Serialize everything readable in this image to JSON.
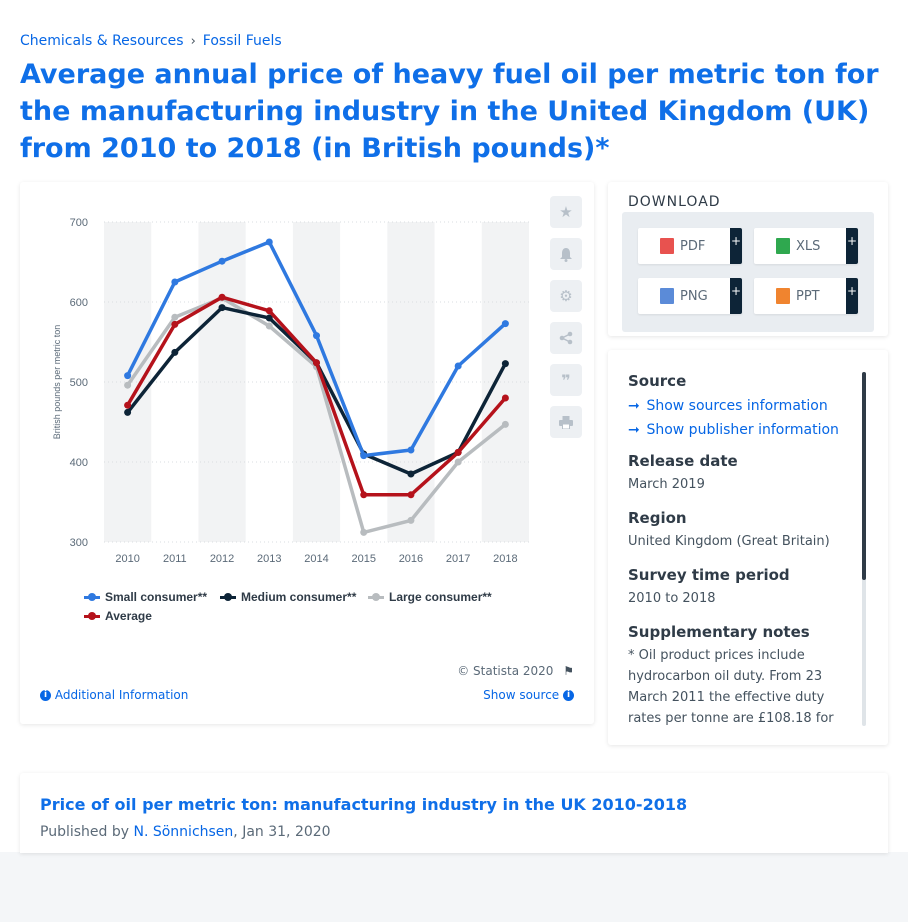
{
  "breadcrumb": {
    "item1": "Chemicals & Resources",
    "separator": "›",
    "item2": "Fossil Fuels"
  },
  "page_title": "Average annual price of heavy fuel oil per metric ton for the manufacturing industry in the United Kingdom (UK) from 2010 to 2018 (in British pounds)*",
  "chart_footer": {
    "credit": "© Statista 2020",
    "additional_info": "Additional Information",
    "show_source": "Show source"
  },
  "tools": [
    "star-icon",
    "bell-icon",
    "gear-icon",
    "share-icon",
    "quote-icon",
    "print-icon"
  ],
  "download": {
    "title": "DOWNLOAD",
    "buttons": [
      {
        "label": "PDF",
        "icon": "pdf-file-icon",
        "color": "#e8524f"
      },
      {
        "label": "XLS",
        "icon": "xls-file-icon",
        "color": "#2fa84f"
      },
      {
        "label": "PNG",
        "icon": "png-file-icon",
        "color": "#5b8bd8"
      },
      {
        "label": "PPT",
        "icon": "ppt-file-icon",
        "color": "#f0842f"
      }
    ],
    "plus": "+"
  },
  "info": {
    "source_heading": "Source",
    "source_link": "Show sources information",
    "publisher_link": "Show publisher information",
    "release_heading": "Release date",
    "release_value": "March 2019",
    "region_heading": "Region",
    "region_value": "United Kingdom (Great Britain)",
    "survey_heading": "Survey time period",
    "survey_value": "2010 to 2018",
    "notes_heading": "Supplementary notes",
    "notes_value": "* Oil product prices include hydrocarbon oil duty. From 23 March 2011 the effective duty rates per tonne are £108.18 for"
  },
  "publication": {
    "title": "Price of oil per metric ton: manufacturing industry in the UK 2010-2018",
    "prefix": "Published by",
    "author": "N. Sönnichsen",
    "date": ", Jan 31, 2020"
  },
  "chart_data": {
    "type": "line",
    "title": "",
    "xlabel": "",
    "ylabel": "British pounds per metric ton",
    "categories": [
      "2010",
      "2011",
      "2012",
      "2013",
      "2014",
      "2015",
      "2016",
      "2017",
      "2018"
    ],
    "ylim": [
      300,
      700
    ],
    "yticks": [
      300,
      400,
      500,
      600,
      700
    ],
    "grid": true,
    "legend": "bottom",
    "series": [
      {
        "name": "Small consumer**",
        "color": "#2f79e0",
        "values": [
          508,
          625,
          651,
          675,
          558,
          408,
          415,
          520,
          573
        ]
      },
      {
        "name": "Medium consumer**",
        "color": "#0d2437",
        "values": [
          462,
          537,
          593,
          580,
          524,
          410,
          385,
          412,
          523
        ]
      },
      {
        "name": "Large consumer**",
        "color": "#b8bcbf",
        "values": [
          496,
          581,
          605,
          570,
          519,
          312,
          327,
          400,
          447
        ]
      },
      {
        "name": "Average",
        "color": "#b5121b",
        "values": [
          471,
          572,
          606,
          589,
          524,
          359,
          359,
          412,
          480
        ]
      }
    ]
  }
}
